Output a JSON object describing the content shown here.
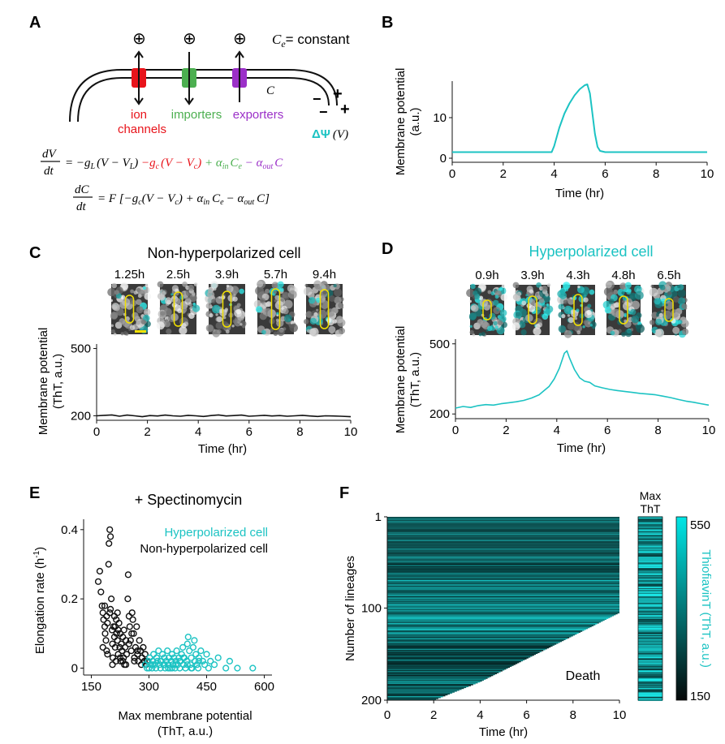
{
  "colors": {
    "cyan": "#1cc3c3",
    "black": "#111111",
    "ion": "#e8141b",
    "importer": "#4caf50",
    "exporter": "#9b30c8",
    "heat_dark": "#0c1414",
    "heat_bright": "#00e6e6"
  },
  "panelA": {
    "letter": "A",
    "charge_symbol": "⊕",
    "ce_label": "C",
    "ce_sub": "e",
    "ce_suffix": "= constant",
    "c_label": "C",
    "ion_label_1": "ion",
    "ion_label_2": "channels",
    "importers_label": "importers",
    "exporters_label": "exporters",
    "plus_sign": "+",
    "minus_sign": "−",
    "psi_label": "ΔΨ",
    "psi_unit": "(V)",
    "eq1": {
      "frac_num": "dV",
      "frac_den": "dt",
      "t_lead": "= −g",
      "t_lead_sub": "L",
      "t_lead_paren": "(V − V",
      "t_lead_paren_sub": "L",
      "t_lead_close": ")",
      "t_red": "−g",
      "t_red_sub": "c",
      "t_red_paren": "(V − V",
      "t_red_paren_sub": "c",
      "t_red_close": ")",
      "t_green": "+ α",
      "t_green_sub": "in",
      "t_green_ce": "C",
      "t_green_ce_sub": "e",
      "t_purple": "− α",
      "t_purple_sub": "out",
      "t_purple_c": "C"
    },
    "eq2": {
      "frac_num": "dC",
      "frac_den": "dt",
      "t1": "= F [−g",
      "t1_sub": "c",
      "t2": "(V − V",
      "t2_sub": "c",
      "t3": ") + α",
      "t3_sub": "in",
      "t4": "C",
      "t4_sub": "e",
      "t5": "− α",
      "t5_sub": "out",
      "t6": "C]"
    }
  },
  "panelB": {
    "letter": "B",
    "ylabel_1": "Membrane potential",
    "ylabel_2": "(a.u.)",
    "xlabel": "Time (hr)",
    "xticks": [
      0,
      2,
      4,
      6,
      8,
      10
    ],
    "yticks": [
      0,
      10
    ],
    "xlim": [
      0,
      10
    ],
    "ylim": [
      -1,
      19
    ],
    "chart_data": {
      "type": "line",
      "x": [
        0,
        1,
        2,
        3,
        3.9,
        4.0,
        4.2,
        4.4,
        4.6,
        4.8,
        5.0,
        5.2,
        5.3,
        5.4,
        5.5,
        5.6,
        5.7,
        5.8,
        6,
        7,
        8,
        9,
        10
      ],
      "y": [
        1.5,
        1.5,
        1.5,
        1.5,
        1.5,
        3,
        7.5,
        11,
        13.5,
        15.5,
        17,
        18,
        18.2,
        16,
        11,
        6,
        2.8,
        1.8,
        1.5,
        1.5,
        1.5,
        1.5,
        1.5
      ]
    }
  },
  "panelC": {
    "letter": "C",
    "title": "Non-hyperpolarized cell",
    "times": [
      "1.25h",
      "2.5h",
      "3.9h",
      "5.7h",
      "9.4h"
    ],
    "ylabel_1": "Membrane potential",
    "ylabel_2": "(ThT, a.u.)",
    "xlabel": "Time (hr)",
    "xticks": [
      0,
      2,
      4,
      6,
      8,
      10
    ],
    "yticks": [
      200,
      500
    ],
    "xlim": [
      0,
      10
    ],
    "ylim": [
      180,
      520
    ],
    "chart_data": {
      "type": "line",
      "x": [
        0,
        0.3,
        0.6,
        0.9,
        1.2,
        1.5,
        1.8,
        2.1,
        2.4,
        2.7,
        3.0,
        3.3,
        3.6,
        3.9,
        4.2,
        4.5,
        4.8,
        5.1,
        5.4,
        5.7,
        6.0,
        6.3,
        6.6,
        6.9,
        7.2,
        7.5,
        7.8,
        8.1,
        8.4,
        8.7,
        9.0,
        9.3,
        9.6,
        10
      ],
      "y": [
        200,
        202,
        204,
        198,
        203,
        200,
        196,
        201,
        199,
        203,
        200,
        198,
        202,
        200,
        197,
        201,
        204,
        199,
        201,
        203,
        198,
        200,
        202,
        199,
        201,
        198,
        200,
        202,
        199,
        197,
        200,
        199,
        198,
        196
      ]
    }
  },
  "panelD": {
    "letter": "D",
    "title": "Hyperpolarized cell",
    "times": [
      "0.9h",
      "3.9h",
      "4.3h",
      "4.8h",
      "6.5h"
    ],
    "ylabel_1": "Membrane potential",
    "ylabel_2": "(ThT, a.u.)",
    "xlabel": "Time (hr)",
    "xticks": [
      0,
      2,
      4,
      6,
      8,
      10
    ],
    "yticks": [
      200,
      500
    ],
    "xlim": [
      0,
      10
    ],
    "ylim": [
      180,
      520
    ],
    "chart_data": {
      "type": "line",
      "x": [
        0,
        0.3,
        0.6,
        0.9,
        1.2,
        1.5,
        1.8,
        2.1,
        2.4,
        2.7,
        3.0,
        3.3,
        3.5,
        3.7,
        3.9,
        4.1,
        4.3,
        4.4,
        4.5,
        4.7,
        4.9,
        5.1,
        5.3,
        5.5,
        5.8,
        6.1,
        6.4,
        6.7,
        7.0,
        7.3,
        7.6,
        7.9,
        8.2,
        8.5,
        8.8,
        9.1,
        9.4,
        9.7,
        10
      ],
      "y": [
        225,
        232,
        228,
        236,
        240,
        238,
        244,
        248,
        252,
        258,
        268,
        282,
        300,
        318,
        350,
        395,
        460,
        470,
        440,
        390,
        355,
        340,
        335,
        320,
        312,
        305,
        300,
        296,
        292,
        288,
        285,
        282,
        276,
        270,
        262,
        255,
        250,
        244,
        238
      ]
    }
  },
  "panelE": {
    "letter": "E",
    "title": "+ Spectinomycin",
    "legend_hyper": "Hyperpolarized cell",
    "legend_non": "Non-hyperpolarized cell",
    "ylabel": "Elongation rate (h",
    "ylabel_sup": "-1",
    "ylabel_close": ")",
    "xlabel_1": "Max membrane potential",
    "xlabel_2": "(ThT, a.u.)",
    "xticks": [
      150,
      300,
      450,
      600
    ],
    "yticks": [
      0,
      0.2,
      0.4
    ],
    "xlim": [
      130,
      620
    ],
    "ylim": [
      -0.02,
      0.43
    ],
    "chart_data": {
      "type": "scatter",
      "series": [
        {
          "name": "Non-hyperpolarized cell",
          "x": [
            168,
            172,
            175,
            178,
            180,
            182,
            185,
            186,
            188,
            190,
            190,
            192,
            195,
            196,
            198,
            200,
            200,
            202,
            204,
            205,
            206,
            208,
            210,
            210,
            212,
            214,
            215,
            216,
            218,
            220,
            220,
            222,
            224,
            225,
            226,
            228,
            230,
            232,
            234,
            235,
            236,
            238,
            240,
            242,
            245,
            246,
            248,
            250,
            252,
            254,
            256,
            258,
            260,
            262,
            265,
            268,
            270,
            272,
            275,
            278,
            280,
            282,
            285,
            288,
            290,
            292,
            295,
            180,
            185,
            192,
            198,
            205,
            212,
            218,
            225,
            232,
            240,
            248,
            255,
            262,
            270
          ],
          "y": [
            0.25,
            0.28,
            0.22,
            0.18,
            0.16,
            0.14,
            0.12,
            0.1,
            0.08,
            0.15,
            0.05,
            0.13,
            0.3,
            0.36,
            0.4,
            0.38,
            0.17,
            0.2,
            0.11,
            0.07,
            0.03,
            0.12,
            0.15,
            0.09,
            0.06,
            0.02,
            0.14,
            0.1,
            0.08,
            0.04,
            0.11,
            0.13,
            0.06,
            0.1,
            0.02,
            0.07,
            0.05,
            0.09,
            0.03,
            0.11,
            0.01,
            0.06,
            0.08,
            0.04,
            0.2,
            0.27,
            0.15,
            0.12,
            0.08,
            0.05,
            0.16,
            0.14,
            0.1,
            0.03,
            0.06,
            0.12,
            0.04,
            0.02,
            0.08,
            0.05,
            0.01,
            0.03,
            0.06,
            0.02,
            0.04,
            0.01,
            0.02,
            0.06,
            0.18,
            0.04,
            0.16,
            0.01,
            0.12,
            0.16,
            0.03,
            0.02,
            0.01,
            0.07,
            0.1,
            0.02,
            0.05
          ]
        },
        {
          "name": "Hyperpolarized cell",
          "x": [
            290,
            295,
            298,
            300,
            302,
            305,
            308,
            310,
            312,
            315,
            318,
            320,
            322,
            325,
            328,
            330,
            332,
            335,
            338,
            340,
            342,
            345,
            348,
            350,
            352,
            355,
            358,
            360,
            362,
            365,
            368,
            370,
            372,
            375,
            378,
            380,
            382,
            385,
            388,
            390,
            392,
            395,
            398,
            400,
            402,
            405,
            408,
            410,
            412,
            415,
            418,
            420,
            422,
            425,
            428,
            430,
            435,
            440,
            445,
            450,
            455,
            460,
            470,
            480,
            500,
            510,
            530,
            570,
            310,
            330,
            350,
            370,
            390,
            410,
            430,
            320,
            340,
            360,
            380,
            400
          ],
          "y": [
            0.01,
            0.0,
            0.02,
            0.0,
            0.03,
            0.01,
            0.0,
            0.02,
            0.04,
            0.01,
            0.0,
            0.03,
            0.02,
            0.05,
            0.01,
            0.0,
            0.02,
            0.04,
            0.01,
            0.03,
            0.0,
            0.02,
            0.05,
            0.01,
            0.03,
            0.0,
            0.02,
            0.04,
            0.01,
            0.03,
            0.0,
            0.02,
            0.05,
            0.01,
            0.03,
            0.0,
            0.02,
            0.04,
            0.06,
            0.01,
            0.03,
            0.0,
            0.02,
            0.07,
            0.09,
            0.05,
            0.01,
            0.03,
            0.0,
            0.06,
            0.08,
            0.02,
            0.04,
            0.01,
            0.0,
            0.03,
            0.05,
            0.02,
            0.01,
            0.04,
            0.0,
            0.02,
            0.01,
            0.03,
            0.0,
            0.02,
            0.0,
            0.0,
            0.01,
            0.02,
            0.0,
            0.01,
            0.03,
            0.0,
            0.02,
            0.03,
            0.01,
            0.0,
            0.02,
            0.01
          ]
        }
      ]
    }
  },
  "panelF": {
    "letter": "F",
    "ylabel": "Number of lineages",
    "xlabel": "Time (hr)",
    "xticks": [
      0,
      2,
      4,
      6,
      8,
      10
    ],
    "yticks": [
      1,
      100,
      200
    ],
    "death_label": "Death",
    "max_label_1": "Max",
    "max_label_2": "ThT",
    "cbar_label": "ThiofiavinT (ThT, a.u.)",
    "cbar_ticks": [
      550,
      150
    ],
    "chart_data": {
      "type": "heatmap",
      "x_range": [
        0,
        10
      ],
      "lineages": 200,
      "value_range": [
        150,
        550
      ],
      "death_boundary": [
        {
          "lineage": 105,
          "time": 10
        },
        {
          "lineage": 120,
          "time": 8.8
        },
        {
          "lineage": 140,
          "time": 7.2
        },
        {
          "lineage": 160,
          "time": 5.6
        },
        {
          "lineage": 180,
          "time": 4.0
        },
        {
          "lineage": 200,
          "time": 2.0
        }
      ]
    }
  }
}
